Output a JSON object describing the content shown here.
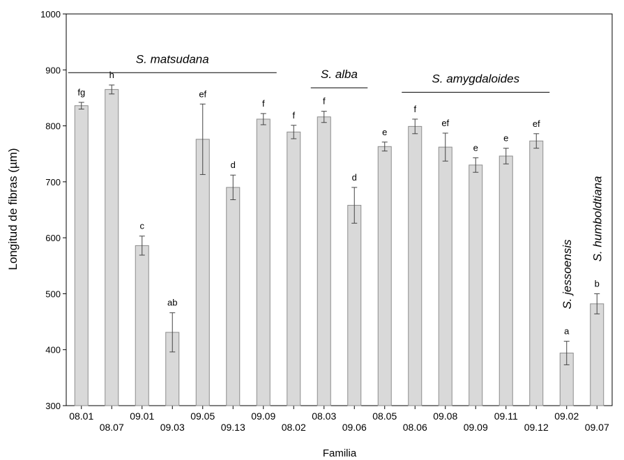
{
  "chart_data": {
    "type": "bar",
    "xlabel": "Familia",
    "ylabel": "Longitud de fibras (µm)",
    "ylim": [
      300,
      1000
    ],
    "yticks": [
      300,
      400,
      500,
      600,
      700,
      800,
      900,
      1000
    ],
    "grid": false,
    "categories": [
      "08.01",
      "08.07",
      "09.01",
      "09.03",
      "09.05",
      "09.13",
      "09.09",
      "08.02",
      "08.03",
      "09.06",
      "08.05",
      "08.06",
      "09.08",
      "09.09",
      "09.11",
      "09.12",
      "09.02",
      "09.07"
    ],
    "values": [
      836,
      865,
      586,
      431,
      776,
      690,
      812,
      789,
      816,
      658,
      763,
      799,
      762,
      730,
      746,
      773,
      394,
      482
    ],
    "errors": [
      6,
      8,
      17,
      35,
      63,
      22,
      10,
      12,
      10,
      32,
      8,
      13,
      25,
      13,
      14,
      13,
      21,
      18
    ],
    "letters": [
      "fg",
      "h",
      "c",
      "ab",
      "ef",
      "d",
      "f",
      "f",
      "f",
      "d",
      "e",
      "f",
      "ef",
      "e",
      "e",
      "ef",
      "a",
      "b"
    ],
    "groups": [
      {
        "label": "S. matsudana",
        "start": 0,
        "end": 6,
        "line_y": 895
      },
      {
        "label": "S. alba",
        "start": 8,
        "end": 9,
        "line_y": 868
      },
      {
        "label": "S. amygdaloides",
        "start": 11,
        "end": 15,
        "line_y": 860
      },
      {
        "label": "S. jessoensis",
        "start": 16,
        "end": 16,
        "vertical": true
      },
      {
        "label": "S. humboldtiana",
        "start": 17,
        "end": 17,
        "vertical": true
      }
    ],
    "colors": {
      "bar_fill": "#d9d9d9",
      "bar_stroke": "#8c8c8c",
      "axis": "#000000"
    }
  }
}
